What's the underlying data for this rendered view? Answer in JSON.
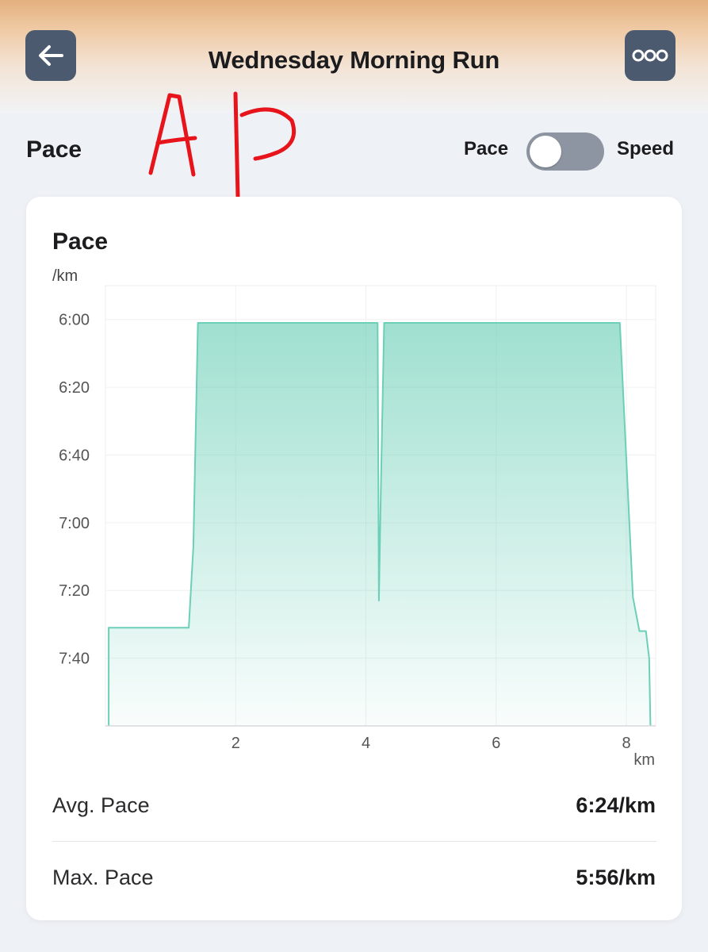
{
  "header": {
    "title": "Wednesday Morning Run",
    "back_icon": "arrow-left-icon",
    "more_icon": "more-options-icon"
  },
  "section": {
    "title": "Pace",
    "toggle": {
      "left_label": "Pace",
      "right_label": "Speed",
      "state": "off"
    }
  },
  "card": {
    "title": "Pace",
    "y_unit": "/km",
    "x_unit": "km"
  },
  "stats": [
    {
      "label": "Avg. Pace",
      "value": "6:24/km"
    },
    {
      "label": "Max. Pace",
      "value": "5:56/km"
    }
  ],
  "colors": {
    "accent": "#6ccfb7",
    "header_gradient_top": "#e3b07e",
    "button_bg": "#4c5a70",
    "annotation": "#e8141b"
  },
  "chart_data": {
    "type": "area",
    "x_unit": "km",
    "y_unit": "/km",
    "y_inverted": true,
    "x_ticks": [
      2,
      4,
      6,
      8
    ],
    "y_ticks": [
      "6:00",
      "6:20",
      "6:40",
      "7:00",
      "7:20",
      "7:40"
    ],
    "y_ticks_seconds": [
      360,
      380,
      400,
      420,
      440,
      460
    ],
    "xlim": [
      0,
      8.45
    ],
    "ylim_seconds": [
      350,
      480
    ],
    "grid": true,
    "series": [
      {
        "x": [
          0.05,
          0.05,
          0.2,
          0.5,
          0.8,
          1.1,
          1.28,
          1.35,
          1.42,
          1.6,
          2.0,
          2.5,
          3.0,
          3.5,
          4.0,
          4.18,
          4.2,
          4.23,
          4.28,
          4.35,
          4.5,
          5.0,
          5.5,
          6.0,
          6.5,
          7.0,
          7.5,
          7.9,
          8.1,
          8.2,
          8.3,
          8.35,
          8.37
        ],
        "y": [
          480,
          451,
          451,
          451,
          451,
          451,
          451,
          427,
          361,
          361,
          361,
          361,
          361,
          361,
          361,
          361,
          443,
          410,
          361,
          361,
          361,
          361,
          361,
          361,
          361,
          361,
          361,
          361,
          442,
          452,
          452,
          460,
          480
        ]
      }
    ]
  }
}
